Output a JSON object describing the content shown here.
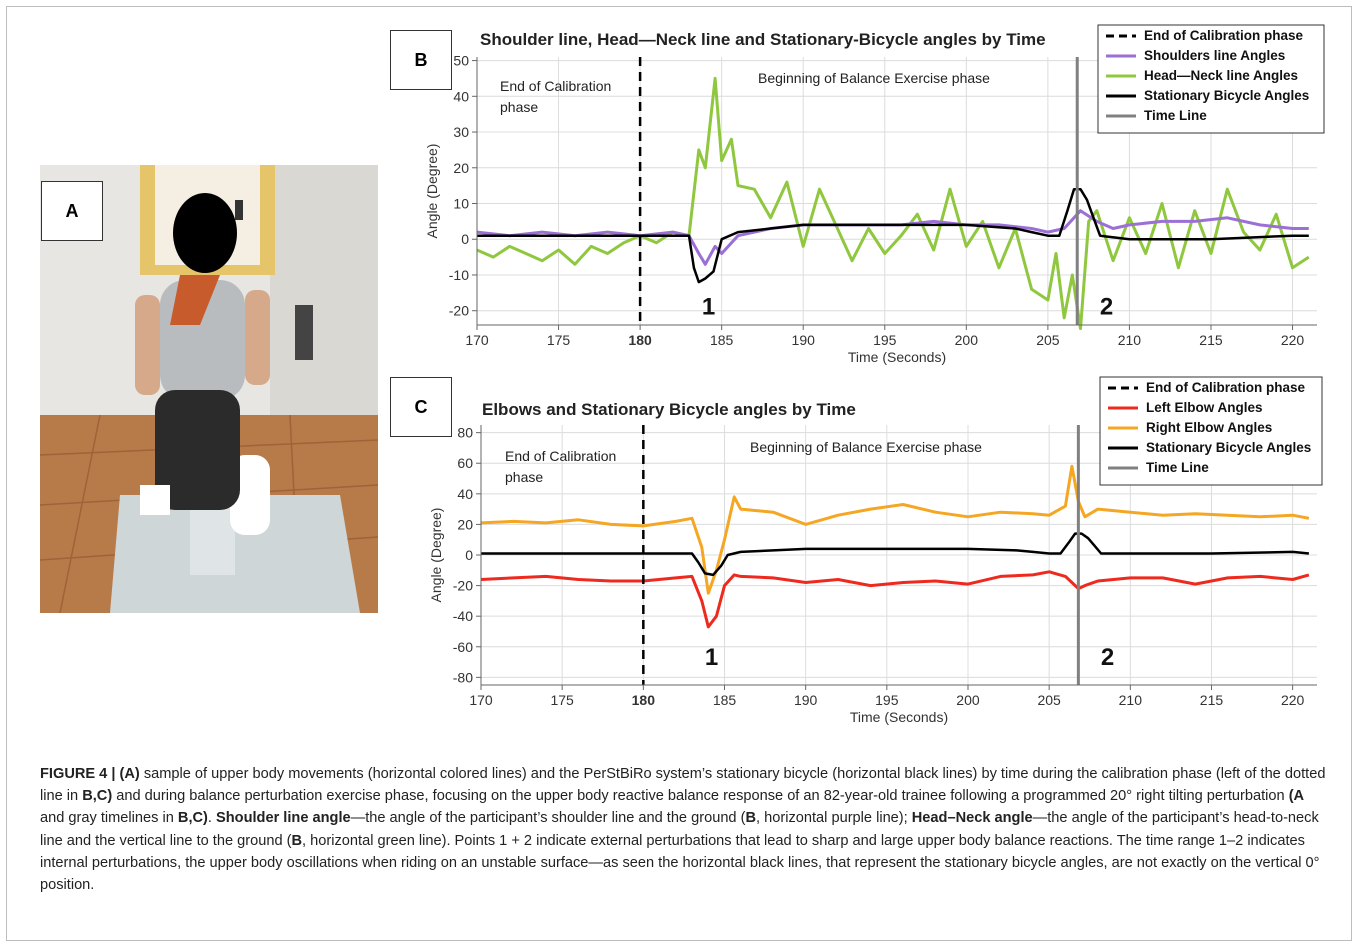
{
  "panels": {
    "a_label": "A",
    "b_label": "B",
    "c_label": "C"
  },
  "photo": {
    "description_icon": "person-on-stationary-bicycle-photo"
  },
  "chart_data": [
    {
      "type": "line",
      "title": "Shoulder line, Head—Neck line and Stationary-Bicycle angles by Time",
      "xlabel": "Time (Seconds)",
      "ylabel": "Angle (Degree)",
      "xlim": [
        170,
        221.5
      ],
      "ylim": [
        -24,
        51
      ],
      "xticks": [
        170,
        175,
        180,
        185,
        190,
        195,
        200,
        205,
        210,
        215,
        220
      ],
      "yticks": [
        -20,
        -10,
        0,
        10,
        20,
        30,
        40,
        50
      ],
      "bold_xtick": 180,
      "annotations": [
        "End of Calibration",
        "phase",
        "Beginning of Balance Exercise phase"
      ],
      "markers": [
        {
          "label": "1",
          "x": 184.2,
          "y": -21
        },
        {
          "label": "2",
          "x": 208.6,
          "y": -21
        }
      ],
      "calibration_line_x": 180,
      "time_line_x": 206.8,
      "legend": [
        {
          "label": "End of Calibration phase",
          "color": "#000000",
          "style": "dashed"
        },
        {
          "label": "Shoulders line Angles",
          "color": "#9b6fd6",
          "style": "solid"
        },
        {
          "label": "Head—Neck line Angles",
          "color": "#8fc73e",
          "style": "solid"
        },
        {
          "label": "Stationary Bicycle Angles",
          "color": "#000000",
          "style": "solid"
        },
        {
          "label": "Time Line",
          "color": "#808080",
          "style": "solid"
        }
      ],
      "legend_position": "top-right",
      "series": [
        {
          "name": "Head—Neck line Angles",
          "color": "#8fc73e",
          "x": [
            170,
            171,
            172,
            173,
            174,
            175,
            176,
            177,
            178,
            179,
            180,
            181,
            182,
            183,
            183.6,
            184,
            184.6,
            185,
            185.6,
            186,
            187,
            188,
            189,
            190,
            191,
            192,
            193,
            194,
            195,
            196,
            197,
            198,
            199,
            200,
            201,
            202,
            203,
            204,
            205,
            205.5,
            206,
            206.5,
            207,
            207.5,
            208,
            209,
            210,
            211,
            212,
            213,
            214,
            215,
            216,
            217,
            218,
            219,
            220,
            221
          ],
          "y": [
            -3,
            -5,
            -2,
            -4,
            -6,
            -3,
            -7,
            -2,
            -4,
            -1,
            1,
            -1,
            2,
            1,
            25,
            20,
            45,
            22,
            28,
            15,
            14,
            6,
            16,
            -2,
            14,
            4,
            -6,
            3,
            -4,
            1,
            7,
            -3,
            14,
            -2,
            5,
            -8,
            3,
            -14,
            -17,
            -4,
            -22,
            -10,
            -25,
            5,
            8,
            -6,
            6,
            -4,
            10,
            -8,
            8,
            -4,
            14,
            2,
            -3,
            7,
            -8,
            -5
          ]
        },
        {
          "name": "Shoulders line Angles",
          "color": "#9b6fd6",
          "x": [
            170,
            172,
            174,
            176,
            178,
            180,
            182,
            183,
            183.6,
            184,
            184.6,
            185,
            186,
            188,
            190,
            192,
            194,
            196,
            198,
            200,
            202,
            204,
            205,
            206,
            207,
            208,
            209,
            210,
            212,
            214,
            216,
            218,
            220,
            221
          ],
          "y": [
            2,
            1,
            2,
            1,
            2,
            1,
            2,
            1,
            -4,
            -7,
            -2,
            -4,
            1,
            3,
            4,
            4,
            4,
            4,
            5,
            4,
            4,
            3,
            2,
            3,
            8,
            5,
            3,
            4,
            5,
            5,
            6,
            4,
            3,
            3
          ]
        },
        {
          "name": "Stationary Bicycle Angles",
          "color": "#000000",
          "x": [
            170,
            176,
            180,
            183,
            183.3,
            183.6,
            184,
            184.5,
            185,
            186,
            188,
            190,
            195,
            200,
            203,
            204,
            205,
            205.7,
            206.2,
            206.6,
            207,
            207.4,
            207.8,
            208.2,
            210,
            215,
            220,
            221
          ],
          "y": [
            1,
            1,
            1,
            1,
            -8,
            -12,
            -11,
            -9,
            0,
            2,
            3,
            4,
            4,
            4,
            3,
            2,
            1,
            1,
            8,
            14,
            14,
            11,
            6,
            1,
            0,
            0,
            1,
            1
          ]
        }
      ]
    },
    {
      "type": "line",
      "title": "Elbows and Stationary Bicycle angles by Time",
      "xlabel": "Time (Seconds)",
      "ylabel": "Angle (Degree)",
      "xlim": [
        170,
        221.5
      ],
      "ylim": [
        -85,
        85
      ],
      "xticks": [
        170,
        175,
        180,
        185,
        190,
        195,
        200,
        205,
        210,
        215,
        220
      ],
      "yticks": [
        -80,
        -60,
        -40,
        -20,
        0,
        20,
        40,
        60,
        80
      ],
      "bold_xtick": 180,
      "annotations": [
        "End of Calibration",
        "phase",
        "Beginning of Balance Exercise phase"
      ],
      "markers": [
        {
          "label": "1",
          "x": 184.2,
          "y": -72
        },
        {
          "label": "2",
          "x": 208.6,
          "y": -72
        }
      ],
      "calibration_line_x": 180,
      "time_line_x": 206.8,
      "legend": [
        {
          "label": "End of Calibration phase",
          "color": "#000000",
          "style": "dashed"
        },
        {
          "label": "Left Elbow Angles",
          "color": "#ee2a1e",
          "style": "solid"
        },
        {
          "label": "Right Elbow Angles",
          "color": "#f5a623",
          "style": "solid"
        },
        {
          "label": "Stationary Bicycle Angles",
          "color": "#000000",
          "style": "solid"
        },
        {
          "label": "Time Line",
          "color": "#808080",
          "style": "solid"
        }
      ],
      "legend_position": "top-right",
      "series": [
        {
          "name": "Right Elbow Angles",
          "color": "#f5a623",
          "x": [
            170,
            172,
            174,
            176,
            178,
            180,
            182,
            183,
            183.6,
            184,
            184.5,
            185,
            185.6,
            186,
            188,
            190,
            192,
            194,
            196,
            198,
            200,
            202,
            204,
            205,
            206,
            206.4,
            206.8,
            207.2,
            208,
            210,
            212,
            214,
            216,
            218,
            220,
            221
          ],
          "y": [
            21,
            22,
            21,
            23,
            20,
            19,
            22,
            24,
            5,
            -25,
            -10,
            10,
            38,
            30,
            28,
            20,
            26,
            30,
            33,
            28,
            25,
            28,
            27,
            26,
            32,
            58,
            35,
            25,
            30,
            28,
            26,
            27,
            26,
            25,
            26,
            24
          ]
        },
        {
          "name": "Left Elbow Angles",
          "color": "#ee2a1e",
          "x": [
            170,
            172,
            174,
            176,
            178,
            180,
            182,
            183,
            183.6,
            184,
            184.5,
            185,
            185.6,
            186,
            188,
            190,
            192,
            194,
            196,
            198,
            200,
            202,
            204,
            205,
            206,
            206.4,
            206.8,
            207.2,
            208,
            210,
            212,
            214,
            216,
            218,
            220,
            221
          ],
          "y": [
            -16,
            -15,
            -14,
            -16,
            -17,
            -17,
            -15,
            -14,
            -30,
            -47,
            -40,
            -20,
            -13,
            -14,
            -15,
            -18,
            -16,
            -20,
            -18,
            -17,
            -19,
            -14,
            -13,
            -11,
            -14,
            -18,
            -22,
            -20,
            -17,
            -15,
            -15,
            -19,
            -15,
            -14,
            -16,
            -13
          ]
        },
        {
          "name": "Stationary Bicycle Angles",
          "color": "#000000",
          "x": [
            170,
            176,
            180,
            183,
            183.4,
            183.8,
            184.3,
            184.8,
            185.2,
            186,
            188,
            190,
            195,
            200,
            203,
            204,
            205,
            205.7,
            206.2,
            206.6,
            207,
            207.4,
            207.8,
            208.2,
            210,
            215,
            220,
            221
          ],
          "y": [
            1,
            1,
            1,
            1,
            -5,
            -12,
            -13,
            -7,
            0,
            2,
            3,
            4,
            4,
            4,
            3,
            2,
            1,
            1,
            8,
            14,
            14,
            11,
            6,
            1,
            1,
            1,
            2,
            1
          ]
        }
      ]
    }
  ],
  "caption": {
    "figure_label": "FIGURE 4 | ",
    "part1_bold": "(A)",
    "part2": " sample of upper body movements (horizontal colored lines) and the PerStBiRo system’s stationary bicycle (horizontal black lines) by time during the calibration phase (left of the dotted line in ",
    "part3_bold": "B,C)",
    "part4": " and during balance perturbation exercise phase, focusing on the upper body reactive balance response of an 82-year-old trainee following a programmed 20° right tilting perturbation ",
    "part5_bold": "(A",
    "part6": " and gray timelines in ",
    "part7_bold": "B,C)",
    "part8": ". ",
    "part9_bold": "Shoulder line angle",
    "part10": "—the angle of the participant’s shoulder line and the ground (",
    "part11_bold": "B",
    "part12": ", horizontal purple line); ",
    "part13_bold": "Head–Neck angle",
    "part14": "—the angle of the participant’s head-to-neck line and the vertical line to the ground (",
    "part15_bold": "B",
    "part16": ", horizontal green line). Points 1 + 2 indicate external perturbations that lead to sharp and large upper body balance reactions. The time range 1–2 indicates internal perturbations, the upper body oscillations when riding on an unstable surface—as seen the horizontal black lines, that represent the stationary bicycle angles, are not exactly on the vertical 0° position."
  }
}
